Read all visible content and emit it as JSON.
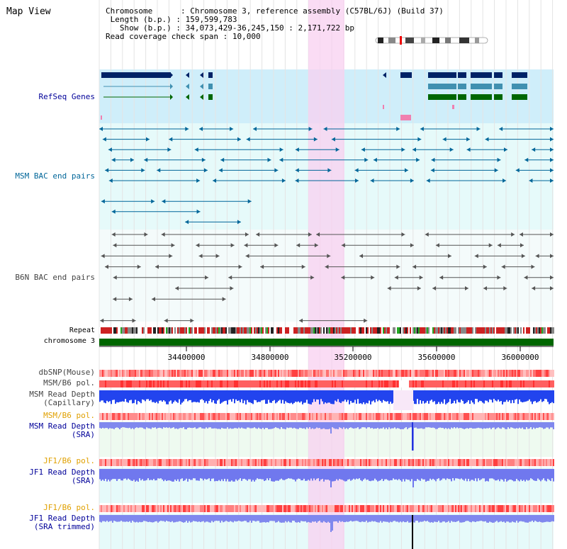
{
  "page": {
    "title": "Map View"
  },
  "info": {
    "chromosome_label": "Chromosome",
    "chromosome_value": "Chromosome 3, reference assembly (C57BL/6J) (Build 37)",
    "length_label": "Length (b.p.)",
    "length_value": "159,599,783",
    "show_label": "Show (b.p.)",
    "show_value": "34,073,429-36,245,150 : 2,171,722 bp",
    "coverage_label": "Read coverage check span",
    "coverage_value": "10,000"
  },
  "tracks": {
    "refseq": {
      "label": "RefSeq Genes",
      "color": "#000099"
    },
    "msm_bac": {
      "label": "MSM BAC end pairs",
      "color": "#006699"
    },
    "b6n_bac": {
      "label": "B6N BAC end pairs",
      "color": "#444444"
    },
    "repeat": {
      "label": "Repeat"
    },
    "chromosome": {
      "label": "chromosome 3"
    },
    "dbsnp": {
      "label": "dbSNP(Mouse)"
    },
    "msm_b6_pol_1": {
      "label": "MSM/B6 pol."
    },
    "msm_read_depth_cap": {
      "label_line1": "MSM Read Depth",
      "label_line2": "(Capillary)"
    },
    "msm_b6_pol_2": {
      "label": "MSM/B6 pol.",
      "color": "#e0a000"
    },
    "msm_read_depth_sra": {
      "label_line1": "MSM Read Depth",
      "label_line2": "(SRA)",
      "color": "#000099"
    },
    "jf1_b6_pol_1": {
      "label": "JF1/B6 pol.",
      "color": "#e0a000"
    },
    "jf1_read_depth_sra": {
      "label_line1": "JF1 Read Depth",
      "label_line2": "(SRA)",
      "color": "#000099"
    },
    "jf1_b6_pol_2": {
      "label": "JF1/B6 pol.",
      "color": "#e0a000"
    },
    "jf1_read_depth_trim": {
      "label_line1": "JF1 Read Depth",
      "label_line2": "(SRA trimmed)",
      "color": "#000099"
    }
  },
  "axis": {
    "ticks": [
      "34400000",
      "34800000",
      "35200000",
      "35600000",
      "36000000"
    ]
  },
  "colors": {
    "highlight": "#f8d0f0",
    "refseq_bg": "#cfeefa",
    "track_bg": "#e6fafa",
    "chromosome_bar": "#006600",
    "gene_dark": "#002266",
    "gene_mid": "#4090b0",
    "gene_green": "#006600"
  }
}
